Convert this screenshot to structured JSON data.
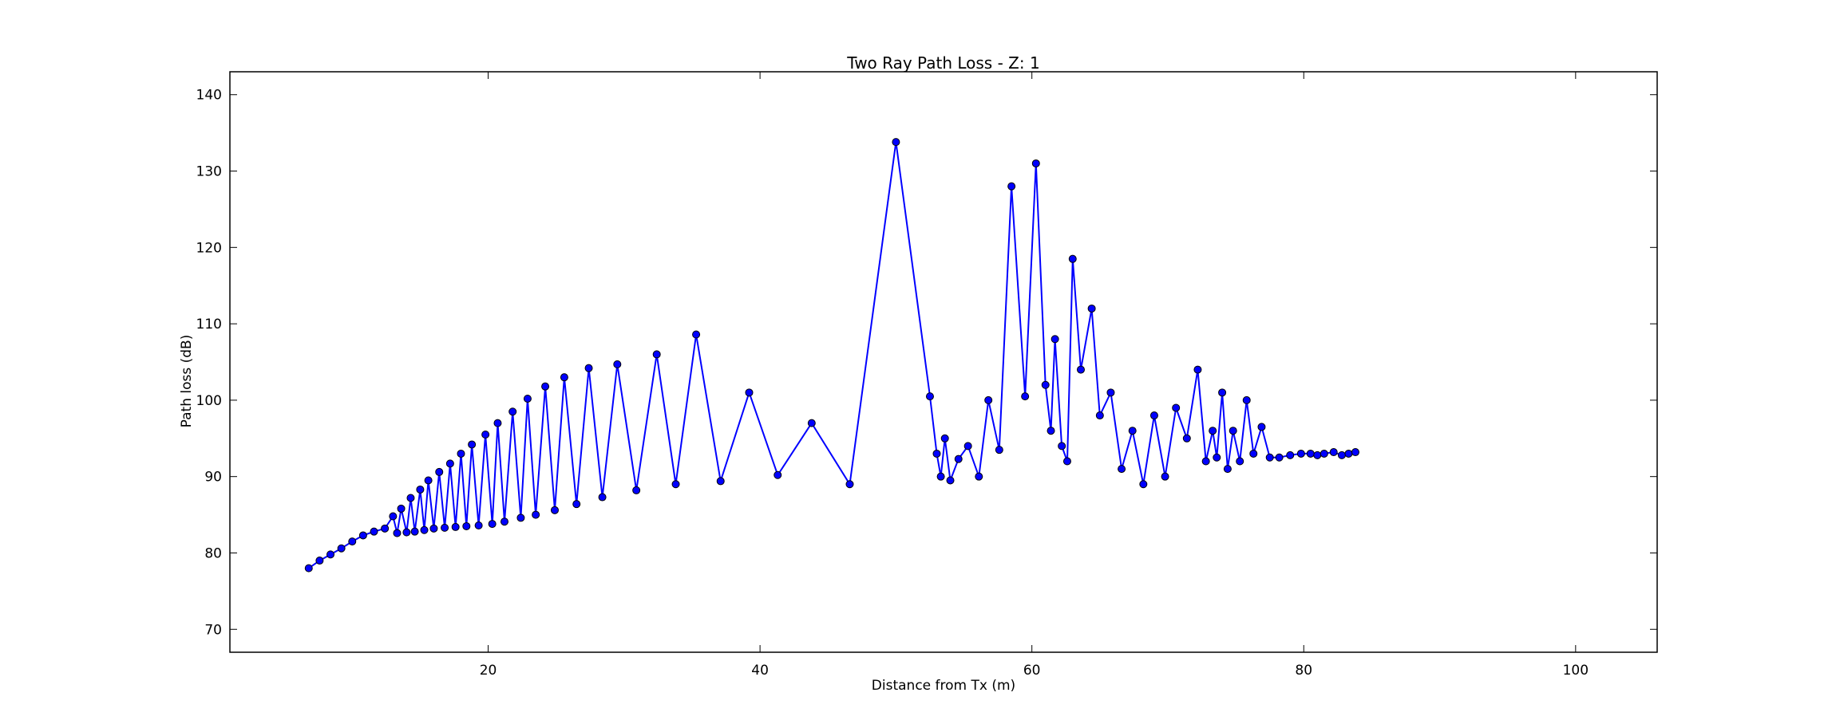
{
  "chart_data": {
    "type": "line",
    "title": "Two Ray Path Loss - Z: 1",
    "xlabel": "Distance from Tx (m)",
    "ylabel": "Path loss (dB)",
    "xlim": [
      1,
      106
    ],
    "ylim": [
      67,
      143
    ],
    "xticks": [
      20,
      40,
      60,
      80,
      100
    ],
    "yticks": [
      70,
      80,
      90,
      100,
      110,
      120,
      130,
      140
    ],
    "grid": false,
    "legend": "none",
    "series": [
      {
        "line_color": "#0000ff",
        "marker": "circle",
        "marker_face": "#0000ff",
        "marker_edge": "#000000",
        "x": [
          6.8,
          7.6,
          8.4,
          9.2,
          10.0,
          10.8,
          11.6,
          12.4,
          13.0,
          13.3,
          13.6,
          14.0,
          14.3,
          14.6,
          15.0,
          15.3,
          15.6,
          16.0,
          16.4,
          16.8,
          17.2,
          17.6,
          18.0,
          18.4,
          18.8,
          19.3,
          19.8,
          20.3,
          20.7,
          21.2,
          21.8,
          22.4,
          22.9,
          23.5,
          24.2,
          24.9,
          25.6,
          26.5,
          27.4,
          28.4,
          29.5,
          30.9,
          32.4,
          33.8,
          35.3,
          37.1,
          39.2,
          41.3,
          43.8,
          46.6,
          50.0,
          52.5,
          53.0,
          53.3,
          53.6,
          54.0,
          54.6,
          55.3,
          56.1,
          56.8,
          57.6,
          58.5,
          59.5,
          60.3,
          61.0,
          61.4,
          61.7,
          62.2,
          62.6,
          63.0,
          63.6,
          64.4,
          65.0,
          65.8,
          66.6,
          67.4,
          68.2,
          69.0,
          69.8,
          70.6,
          71.4,
          72.2,
          72.8,
          73.3,
          73.6,
          74.0,
          74.4,
          74.8,
          75.3,
          75.8,
          76.3,
          76.9,
          77.5,
          78.2,
          79.0,
          79.8,
          80.5,
          81.0,
          81.5,
          82.2,
          82.8,
          83.3,
          83.8
        ],
        "y": [
          78,
          79,
          79.8,
          80.6,
          81.5,
          82.3,
          82.8,
          83.2,
          84.8,
          82.6,
          85.8,
          82.7,
          87.2,
          82.8,
          88.3,
          83.0,
          89.5,
          83.2,
          90.6,
          83.3,
          91.7,
          83.4,
          93.0,
          83.5,
          94.2,
          83.6,
          95.5,
          83.8,
          97.0,
          84.1,
          98.5,
          84.6,
          100.2,
          85.0,
          101.8,
          85.6,
          103.0,
          86.4,
          104.2,
          87.3,
          104.7,
          88.2,
          106.0,
          89.0,
          108.6,
          89.4,
          101.0,
          90.2,
          97.0,
          89.0,
          133.8,
          100.5,
          93.0,
          90.0,
          95.0,
          89.5,
          92.3,
          94.0,
          90.0,
          100.0,
          93.5,
          128.0,
          100.5,
          131.0,
          102.0,
          96.0,
          108.0,
          94.0,
          92.0,
          118.5,
          104.0,
          112.0,
          98.0,
          101.0,
          91.0,
          96.0,
          89.0,
          98.0,
          90.0,
          99.0,
          95.0,
          104.0,
          92.0,
          96.0,
          92.5,
          101.0,
          91.0,
          96.0,
          92.0,
          100.0,
          93.0,
          96.5,
          92.5,
          92.5,
          92.8,
          93.0,
          93.0,
          92.8,
          93.0,
          93.2,
          92.8,
          93.0,
          93.2
        ]
      }
    ]
  }
}
